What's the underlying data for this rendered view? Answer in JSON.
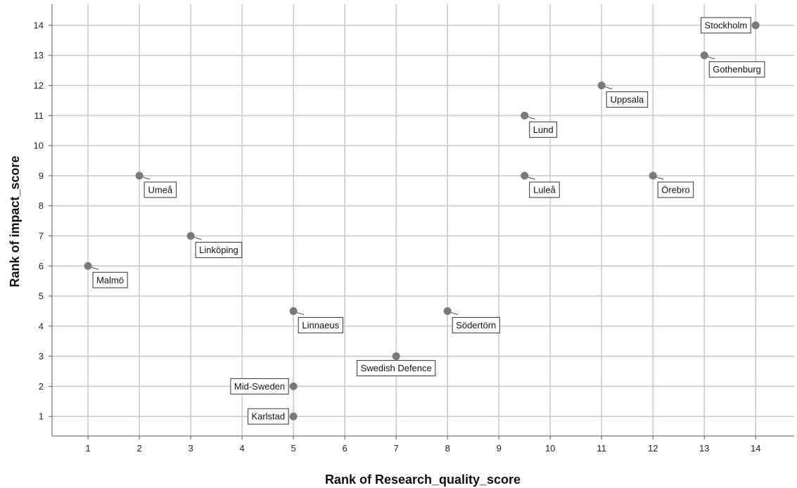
{
  "chart_data": {
    "type": "scatter",
    "title": "",
    "xlabel": "Rank of Research_quality_score",
    "ylabel": "Rank of impact_score",
    "xlim": [
      0.3,
      14.75
    ],
    "ylim": [
      0.35,
      14.7
    ],
    "xticks": [
      1,
      2,
      3,
      4,
      5,
      6,
      7,
      8,
      9,
      10,
      11,
      12,
      13,
      14
    ],
    "yticks": [
      1,
      2,
      3,
      4,
      5,
      6,
      7,
      8,
      9,
      10,
      11,
      12,
      13,
      14
    ],
    "grid": true,
    "point_color": "#7a7a7a",
    "points": [
      {
        "label": "Stockholm",
        "x": 14,
        "y": 14,
        "anchor": "left"
      },
      {
        "label": "Gothenburg",
        "x": 13,
        "y": 13,
        "anchor": "below"
      },
      {
        "label": "Uppsala",
        "x": 11,
        "y": 12,
        "anchor": "below"
      },
      {
        "label": "Lund",
        "x": 9.5,
        "y": 11,
        "anchor": "below"
      },
      {
        "label": "Umeå",
        "x": 2,
        "y": 9,
        "anchor": "below"
      },
      {
        "label": "Luleå",
        "x": 9.5,
        "y": 9,
        "anchor": "below"
      },
      {
        "label": "Örebro",
        "x": 12,
        "y": 9,
        "anchor": "below"
      },
      {
        "label": "Linköping",
        "x": 3,
        "y": 7,
        "anchor": "below"
      },
      {
        "label": "Malmö",
        "x": 1,
        "y": 6,
        "anchor": "below"
      },
      {
        "label": "Linnaeus",
        "x": 5,
        "y": 4.5,
        "anchor": "below"
      },
      {
        "label": "Södertörn",
        "x": 8,
        "y": 4.5,
        "anchor": "below"
      },
      {
        "label": "Swedish Defence",
        "x": 7,
        "y": 3,
        "anchor": "below-center"
      },
      {
        "label": "Mid-Sweden",
        "x": 5,
        "y": 2,
        "anchor": "left"
      },
      {
        "label": "Karlstad",
        "x": 5,
        "y": 1,
        "anchor": "left"
      }
    ]
  }
}
